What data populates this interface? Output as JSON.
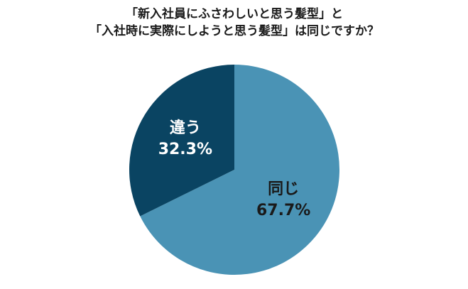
{
  "chart_data": {
    "type": "pie",
    "title": [
      "「新入社員にふさわしいと思う髪型」と",
      "「入社時に実際にしようと思う髪型」は同じですか？"
    ],
    "categories": [
      "同じ",
      "違う"
    ],
    "values": [
      67.7,
      32.3
    ],
    "value_labels": [
      "67.7%",
      "32.3%"
    ],
    "colors": [
      "#4a93b5",
      "#0a4462"
    ],
    "label_colors": [
      "#1a1a1a",
      "#ffffff"
    ]
  }
}
